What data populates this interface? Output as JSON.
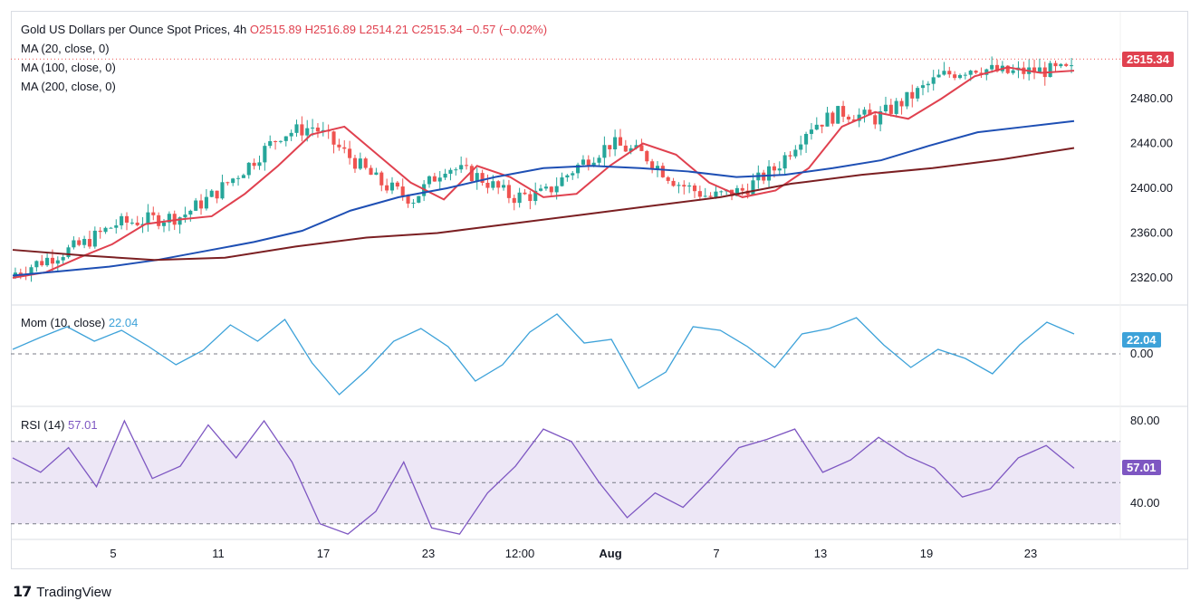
{
  "header": {
    "symbol": "Gold US Dollars per Ounce Spot Prices, 4h",
    "ohlc": "O2515.89 H2516.89 L2514.21 C2515.34 −0.57 (−0.02%)",
    "ma20": "MA (20, close, 0)",
    "ma100": "MA (100, close, 0)",
    "ma200": "MA (200, close, 0)"
  },
  "price_badge": "2515.34",
  "mom_label": "Mom (10, close)",
  "mom_value": "22.04",
  "rsi_label": "RSI (14)",
  "rsi_value": "57.01",
  "brand": "TradingView",
  "colors": {
    "up": "#26a69a",
    "down": "#ef5350",
    "ma20": "#e0414f",
    "ma100": "#1e4fb4",
    "ma200": "#7b1f22",
    "mom": "#3da2d9",
    "rsi": "#7e57c2",
    "rsi_band": "#ede7f6"
  },
  "chart_data": [
    {
      "type": "candlestick",
      "title": "Gold US Dollars per Ounce Spot Prices, 4h",
      "x_ticks": [
        "5",
        "11",
        "17",
        "23",
        "12:00",
        "Aug",
        "7",
        "13",
        "19",
        "23"
      ],
      "y_ticks": [
        "2320.00",
        "2360.00",
        "2400.00",
        "2440.00",
        "2480.00"
      ],
      "ylim": [
        2308,
        2530
      ],
      "last_price": 2515.34,
      "series": [
        {
          "name": "MA (20, close, 0)",
          "values": [
            2320,
            2325,
            2338,
            2350,
            2368,
            2372,
            2375,
            2395,
            2420,
            2448,
            2455,
            2430,
            2405,
            2390,
            2420,
            2410,
            2392,
            2395,
            2420,
            2440,
            2430,
            2405,
            2392,
            2398,
            2418,
            2455,
            2468,
            2462,
            2480,
            2500,
            2508,
            2503,
            2505
          ]
        },
        {
          "name": "MA (100, close, 0)",
          "values": [
            2322,
            2326,
            2330,
            2336,
            2344,
            2352,
            2362,
            2380,
            2392,
            2400,
            2410,
            2418,
            2420,
            2418,
            2415,
            2410,
            2412,
            2418,
            2425,
            2438,
            2450,
            2455,
            2460
          ]
        },
        {
          "name": "MA (200, close, 0)",
          "values": [
            2345,
            2340,
            2336,
            2338,
            2348,
            2356,
            2360,
            2368,
            2376,
            2384,
            2392,
            2404,
            2412,
            2418,
            2426,
            2436
          ]
        }
      ]
    },
    {
      "type": "line",
      "title": "Mom (10, close)",
      "y_ticks": [
        "0.00"
      ],
      "last_value": 22.04,
      "series": [
        {
          "name": "Mom (10, close)",
          "values": [
            5,
            18,
            30,
            14,
            26,
            8,
            -12,
            4,
            32,
            14,
            38,
            -10,
            -45,
            -18,
            14,
            28,
            8,
            -30,
            -12,
            24,
            44,
            12,
            16,
            -38,
            -20,
            30,
            26,
            8,
            -15,
            22,
            28,
            40,
            10,
            -15,
            5,
            -5,
            -22,
            10,
            35,
            22
          ]
        }
      ]
    },
    {
      "type": "line",
      "title": "RSI (14)",
      "y_ticks": [
        "80.00",
        "40.00"
      ],
      "ylim": [
        25,
        80
      ],
      "band": [
        30,
        70
      ],
      "last_value": 57.01,
      "series": [
        {
          "name": "RSI (14)",
          "values": [
            62,
            55,
            67,
            48,
            80,
            52,
            58,
            78,
            62,
            80,
            60,
            30,
            25,
            36,
            60,
            28,
            25,
            45,
            58,
            76,
            70,
            50,
            33,
            45,
            38,
            52,
            67,
            71,
            76,
            55,
            61,
            72,
            63,
            57,
            43,
            47,
            62,
            68,
            57
          ]
        }
      ]
    }
  ]
}
